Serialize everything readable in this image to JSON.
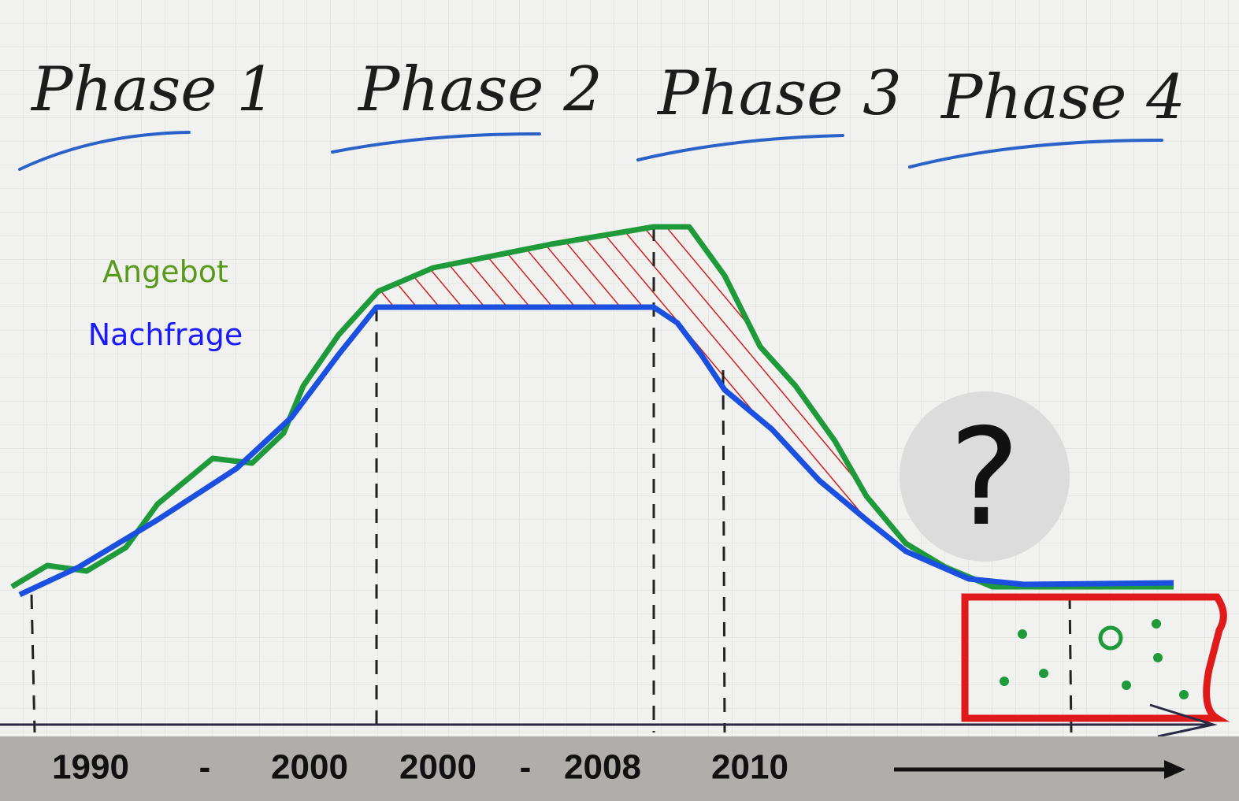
{
  "phases": [
    "Phase 1",
    "Phase 2",
    "Phase 3",
    "Phase 4"
  ],
  "legend": {
    "supply": "Angebot",
    "demand": "Nachfrage"
  },
  "question": "?",
  "timeline": [
    "1990",
    "-",
    "2000",
    "2000",
    "-",
    "2008",
    "2010"
  ]
}
